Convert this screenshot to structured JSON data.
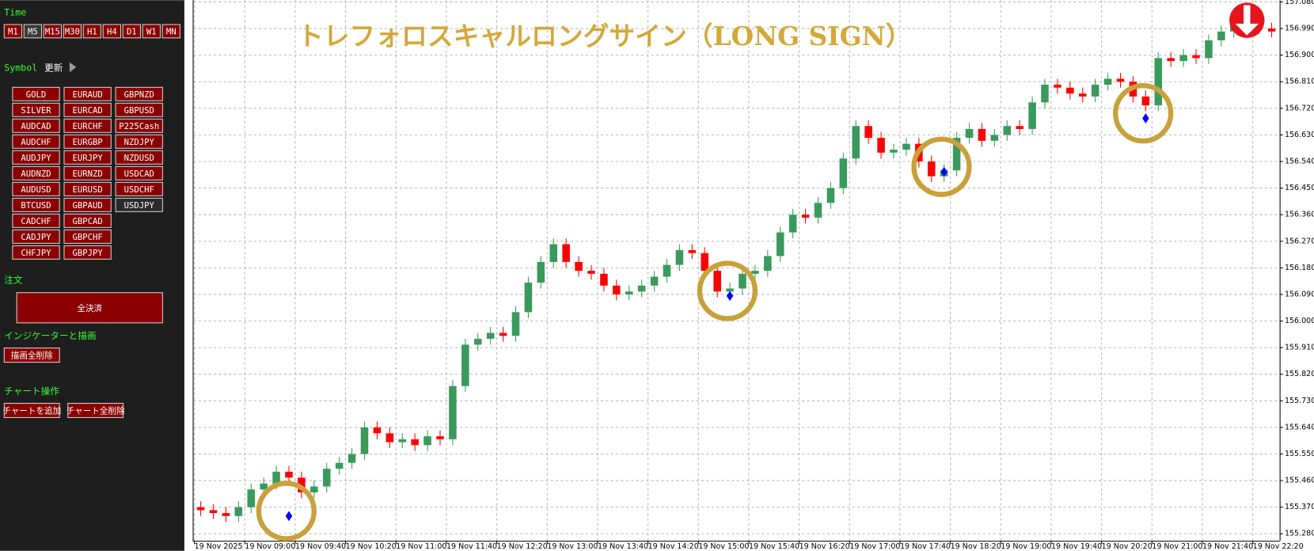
{
  "sidebar": {
    "time_label": "Time",
    "timeframes": [
      "M1",
      "M5",
      "M15",
      "M30",
      "H1",
      "H4",
      "D1",
      "W1",
      "MN"
    ],
    "selected_timeframe": "M5",
    "symbol_label": "Symbol",
    "refresh": "更新",
    "symbols": [
      [
        "GOLD",
        "SILVER",
        "AUDCAD",
        "AUDCHF",
        "AUDJPY",
        "AUDNZD",
        "AUDUSD",
        "BTCUSD",
        "CADCHF",
        "CADJPY",
        "CHFJPY"
      ],
      [
        "EURAUD",
        "EURCAD",
        "EURCHF",
        "EURGBP",
        "EURJPY",
        "EURNZD",
        "EURUSD",
        "GBPAUD",
        "GBPCAD",
        "GBPCHF",
        "GBPJPY"
      ],
      [
        "GBPNZD",
        "GBPUSD",
        "P225Cash",
        "NZDJPY",
        "NZDUSD",
        "USDCAD",
        "USDCHF",
        "USDJPY"
      ]
    ],
    "selected_symbol": "USDJPY",
    "order_label": "注文",
    "close_all": "全決済",
    "indicator_label": "インジケーターと描画",
    "delete_drawings": "描画全削除",
    "chart_label": "チャート操作",
    "add_chart": "チャートを追加",
    "delete_charts": "チャート全削除"
  },
  "chart_data": {
    "type": "candlestick",
    "title": "トレフォロスキャルロングサイン（LONG SIGN）",
    "up_color": "#3a9a5c",
    "down_color": "#ff0000",
    "signal_color": "#0000ff",
    "ring_color": "#c9a13b",
    "grid": true,
    "categories": [
      "19 Nov 2025",
      null,
      null,
      null,
      "19 Nov 09:00",
      null,
      null,
      null,
      "19 Nov 09:40",
      null,
      null,
      null,
      "19 Nov 10:20",
      null,
      null,
      null,
      "19 Nov 11:00",
      null,
      null,
      null,
      "19 Nov 11:40",
      null,
      null,
      null,
      "19 Nov 12:20",
      null,
      null,
      null,
      "19 Nov 13:00",
      null,
      null,
      null,
      "19 Nov 13:40",
      null,
      null,
      null,
      "19 Nov 14:20",
      null,
      null,
      null,
      "19 Nov 15:00",
      null,
      null,
      null,
      "19 Nov 15:40",
      null,
      null,
      null,
      "19 Nov 16:20",
      null,
      null,
      null,
      "19 Nov 17:00",
      null,
      null,
      null,
      "19 Nov 17:40",
      null,
      null,
      null,
      "19 Nov 18:20",
      null,
      null,
      null,
      "19 Nov 19:00",
      null,
      null,
      null,
      "19 Nov 19:40",
      null,
      null,
      null,
      "19 Nov 20:20",
      null,
      null,
      null,
      "19 Nov 21:00",
      null,
      null,
      null,
      "19 Nov 21:40",
      null,
      null,
      null,
      "19 Nov 22:20",
      null
    ],
    "open": [
      155.37,
      155.36,
      155.35,
      155.34,
      155.37,
      155.43,
      155.45,
      155.49,
      155.47,
      155.42,
      155.44,
      155.5,
      155.52,
      155.55,
      155.64,
      155.62,
      155.59,
      155.6,
      155.58,
      155.61,
      155.6,
      155.78,
      155.92,
      155.94,
      155.96,
      155.95,
      156.03,
      156.13,
      156.2,
      156.26,
      156.2,
      156.17,
      156.16,
      156.12,
      156.09,
      156.1,
      156.12,
      156.15,
      156.19,
      156.24,
      156.23,
      156.17,
      156.1,
      156.11,
      156.16,
      156.17,
      156.22,
      156.3,
      156.36,
      156.35,
      156.4,
      156.45,
      156.55,
      156.66,
      156.62,
      156.57,
      156.58,
      156.6,
      156.54,
      156.49,
      156.51,
      156.62,
      156.65,
      156.61,
      156.63,
      156.66,
      156.65,
      156.74,
      156.8,
      156.79,
      156.77,
      156.76,
      156.8,
      156.82,
      156.81,
      156.76,
      156.73,
      156.89,
      156.88,
      156.9,
      156.89,
      156.95,
      156.98,
      157.0,
      156.99,
      156.99
    ],
    "high": [
      155.39,
      155.38,
      155.37,
      155.39,
      155.45,
      155.47,
      155.51,
      155.51,
      155.49,
      155.46,
      155.52,
      155.54,
      155.57,
      155.66,
      155.66,
      155.64,
      155.62,
      155.62,
      155.63,
      155.63,
      155.8,
      155.94,
      155.96,
      155.98,
      155.98,
      156.05,
      156.15,
      156.22,
      156.28,
      156.28,
      156.22,
      156.19,
      156.18,
      156.14,
      156.12,
      156.14,
      156.17,
      156.21,
      156.26,
      156.26,
      156.25,
      156.19,
      156.13,
      156.18,
      156.19,
      156.24,
      156.32,
      156.38,
      156.38,
      156.42,
      156.47,
      156.57,
      156.68,
      156.68,
      156.64,
      156.6,
      156.62,
      156.62,
      156.56,
      156.53,
      156.64,
      156.67,
      156.67,
      156.65,
      156.68,
      156.68,
      156.76,
      156.82,
      156.82,
      156.81,
      156.79,
      156.82,
      156.84,
      156.84,
      156.83,
      156.78,
      156.91,
      156.91,
      156.92,
      156.92,
      156.97,
      157.0,
      157.02,
      157.02,
      157.01,
      157.01
    ],
    "low": [
      155.34,
      155.33,
      155.32,
      155.32,
      155.35,
      155.41,
      155.43,
      155.45,
      155.4,
      155.4,
      155.42,
      155.48,
      155.5,
      155.53,
      155.6,
      155.57,
      155.57,
      155.56,
      155.56,
      155.58,
      155.58,
      155.76,
      155.9,
      155.92,
      155.93,
      155.93,
      156.01,
      156.11,
      156.18,
      156.18,
      156.15,
      156.14,
      156.1,
      156.07,
      156.07,
      156.08,
      156.1,
      156.13,
      156.17,
      156.21,
      156.15,
      156.08,
      156.08,
      156.09,
      156.14,
      156.15,
      156.2,
      156.28,
      156.33,
      156.33,
      156.38,
      156.43,
      156.53,
      156.6,
      156.55,
      156.55,
      156.56,
      156.52,
      156.47,
      156.47,
      156.49,
      156.6,
      156.59,
      156.59,
      156.61,
      156.63,
      156.63,
      156.72,
      156.77,
      156.75,
      156.74,
      156.74,
      156.78,
      156.79,
      156.74,
      156.71,
      156.71,
      156.86,
      156.86,
      156.87,
      156.87,
      156.93,
      156.96,
      156.97,
      156.97,
      156.96
    ],
    "close": [
      155.36,
      155.35,
      155.34,
      155.37,
      155.43,
      155.45,
      155.49,
      155.47,
      155.42,
      155.44,
      155.5,
      155.52,
      155.55,
      155.64,
      155.62,
      155.59,
      155.6,
      155.58,
      155.61,
      155.6,
      155.78,
      155.92,
      155.94,
      155.96,
      155.95,
      156.03,
      156.13,
      156.2,
      156.26,
      156.2,
      156.17,
      156.16,
      156.12,
      156.09,
      156.1,
      156.12,
      156.15,
      156.19,
      156.24,
      156.23,
      156.17,
      156.1,
      156.11,
      156.16,
      156.17,
      156.22,
      156.3,
      156.36,
      156.35,
      156.4,
      156.45,
      156.55,
      156.66,
      156.62,
      156.57,
      156.58,
      156.6,
      156.54,
      156.49,
      156.51,
      156.62,
      156.65,
      156.61,
      156.63,
      156.66,
      156.65,
      156.74,
      156.8,
      156.79,
      156.77,
      156.76,
      156.8,
      156.82,
      156.81,
      156.76,
      156.73,
      156.89,
      156.88,
      156.9,
      156.89,
      156.95,
      156.98,
      157.0,
      156.99,
      156.99,
      156.98
    ],
    "signals": [
      null,
      null,
      null,
      null,
      null,
      null,
      null,
      155.34,
      null,
      null,
      null,
      null,
      null,
      null,
      null,
      null,
      null,
      null,
      null,
      null,
      null,
      null,
      null,
      null,
      null,
      null,
      null,
      null,
      null,
      null,
      null,
      null,
      null,
      null,
      null,
      null,
      null,
      null,
      null,
      null,
      null,
      null,
      156.085,
      null,
      null,
      null,
      null,
      null,
      null,
      null,
      null,
      null,
      null,
      null,
      null,
      null,
      null,
      null,
      null,
      156.505,
      null,
      null,
      null,
      null,
      null,
      null,
      null,
      null,
      null,
      null,
      null,
      null,
      null,
      null,
      null,
      156.686,
      null,
      null,
      null,
      null,
      null,
      null,
      null,
      null,
      null,
      null
    ],
    "ylim": [
      155.262,
      157.086
    ],
    "yticks": [
      {
        "value": 155.28,
        "label": "155.280"
      },
      {
        "value": 155.37,
        "label": "155.370"
      },
      {
        "value": 155.46,
        "label": "155.460"
      },
      {
        "value": 155.55,
        "label": "155.550"
      },
      {
        "value": 155.64,
        "label": "155.640"
      },
      {
        "value": 155.73,
        "label": "155.730"
      },
      {
        "value": 155.82,
        "label": "155.820"
      },
      {
        "value": 155.91,
        "label": "155.910"
      },
      {
        "value": 156.0,
        "label": "156.000"
      },
      {
        "value": 156.09,
        "label": "156.090"
      },
      {
        "value": 156.18,
        "label": "156.180"
      },
      {
        "value": 156.27,
        "label": "156.270"
      },
      {
        "value": 156.36,
        "label": "156.360"
      },
      {
        "value": 156.45,
        "label": "156.450"
      },
      {
        "value": 156.54,
        "label": "156.540"
      },
      {
        "value": 156.63,
        "label": "156.630"
      },
      {
        "value": 156.72,
        "label": "156.720"
      },
      {
        "value": 156.81,
        "label": "156.810"
      },
      {
        "value": 156.9,
        "label": "156.900"
      },
      {
        "value": 156.99,
        "label": "156.990"
      },
      {
        "value": 157.08,
        "label": "157.080"
      }
    ]
  }
}
